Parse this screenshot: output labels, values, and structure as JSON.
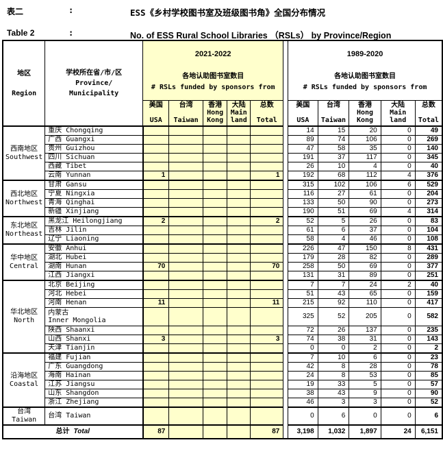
{
  "colors": {
    "highlight": "#FFFFCC",
    "border": "#000000",
    "background": "#FFFFFF"
  },
  "titles": {
    "label_cn": "表二",
    "colon1": ":",
    "title_cn": "ESS《乡村学校图书室及班级图书角》全国分布情况",
    "label_en": "Table 2",
    "colon2": ":",
    "title_en": "No. of ESS Rural School Libraries （RSLs） by Province/Region"
  },
  "header": {
    "region": {
      "cn": "地区",
      "en": "Region"
    },
    "province": {
      "cn": "学校所在省/市/区",
      "en1": "Province/",
      "en2": "Municipality"
    },
    "sections": [
      {
        "years": "2021-2022",
        "subtitle_cn": "各地认助图书室数目",
        "subtitle_en": "# RSLs funded by sponsors from"
      },
      {
        "years": "1989-2020",
        "subtitle_cn": "各地认助图书室数目",
        "subtitle_en": "# RSLs funded by sponsors from"
      }
    ],
    "columns": [
      {
        "cn": "美国",
        "en": "USA"
      },
      {
        "cn": "台湾",
        "en": "Taiwan"
      },
      {
        "cn": "香港",
        "en": "Hong Kong"
      },
      {
        "cn": "大陆",
        "en": "Main land"
      },
      {
        "cn": "总数",
        "en": "Total"
      }
    ]
  },
  "regions": [
    {
      "cn": "西南地区",
      "en": "Southwest",
      "rows": [
        {
          "cn": "重庆",
          "en": "Chongqing",
          "y2021": [
            "",
            "",
            "",
            "",
            ""
          ],
          "y1989": [
            "14",
            "15",
            "20",
            "0",
            "49"
          ]
        },
        {
          "cn": "广西",
          "en": "Guangxi",
          "y2021": [
            "",
            "",
            "",
            "",
            ""
          ],
          "y1989": [
            "89",
            "74",
            "106",
            "0",
            "269"
          ]
        },
        {
          "cn": "贵州",
          "en": "Guizhou",
          "y2021": [
            "",
            "",
            "",
            "",
            ""
          ],
          "y1989": [
            "47",
            "58",
            "35",
            "0",
            "140"
          ]
        },
        {
          "cn": "四川",
          "en": "Sichuan",
          "y2021": [
            "",
            "",
            "",
            "",
            ""
          ],
          "y1989": [
            "191",
            "37",
            "117",
            "0",
            "345"
          ]
        },
        {
          "cn": "西藏",
          "en": "Tibet",
          "y2021": [
            "",
            "",
            "",
            "",
            ""
          ],
          "y1989": [
            "26",
            "10",
            "4",
            "0",
            "40"
          ]
        },
        {
          "cn": "云南",
          "en": "Yunnan",
          "y2021": [
            "1",
            "",
            "",
            "",
            "1"
          ],
          "y1989": [
            "192",
            "68",
            "112",
            "4",
            "376"
          ]
        }
      ]
    },
    {
      "cn": "西北地区",
      "en": "Northwest",
      "rows": [
        {
          "cn": "甘肃",
          "en": "Gansu",
          "y2021": [
            "",
            "",
            "",
            "",
            ""
          ],
          "y1989": [
            "315",
            "102",
            "106",
            "6",
            "529"
          ]
        },
        {
          "cn": "宁夏",
          "en": "Ningxia",
          "y2021": [
            "",
            "",
            "",
            "",
            ""
          ],
          "y1989": [
            "116",
            "27",
            "61",
            "0",
            "204"
          ]
        },
        {
          "cn": "青海",
          "en": "Qinghai",
          "y2021": [
            "",
            "",
            "",
            "",
            ""
          ],
          "y1989": [
            "133",
            "50",
            "90",
            "0",
            "273"
          ]
        },
        {
          "cn": "新疆",
          "en": "Xinjiang",
          "y2021": [
            "",
            "",
            "",
            "",
            ""
          ],
          "y1989": [
            "190",
            "51",
            "69",
            "4",
            "314"
          ]
        }
      ]
    },
    {
      "cn": "东北地区",
      "en": "Northeast",
      "rows": [
        {
          "cn": "黑龙江",
          "en": "Heilongjiang",
          "y2021": [
            "2",
            "",
            "",
            "",
            "2"
          ],
          "y1989": [
            "52",
            "5",
            "26",
            "0",
            "83"
          ]
        },
        {
          "cn": "吉林",
          "en": "Jilin",
          "y2021": [
            "",
            "",
            "",
            "",
            ""
          ],
          "y1989": [
            "61",
            "6",
            "37",
            "0",
            "104"
          ]
        },
        {
          "cn": "辽宁",
          "en": "Liaoning",
          "y2021": [
            "",
            "",
            "",
            "",
            ""
          ],
          "y1989": [
            "58",
            "4",
            "46",
            "0",
            "108"
          ]
        }
      ]
    },
    {
      "cn": "华中地区",
      "en": "Central",
      "rows": [
        {
          "cn": "安徽",
          "en": "Anhui",
          "y2021": [
            "",
            "",
            "",
            "",
            ""
          ],
          "y1989": [
            "226",
            "47",
            "150",
            "8",
            "431"
          ]
        },
        {
          "cn": "湖北",
          "en": "Hubei",
          "y2021": [
            "",
            "",
            "",
            "",
            ""
          ],
          "y1989": [
            "179",
            "28",
            "82",
            "0",
            "289"
          ]
        },
        {
          "cn": "湖南",
          "en": "Hunan",
          "y2021": [
            "70",
            "",
            "",
            "",
            "70"
          ],
          "y1989": [
            "258",
            "50",
            "69",
            "0",
            "377"
          ]
        },
        {
          "cn": "江西",
          "en": "Jiangxi",
          "y2021": [
            "",
            "",
            "",
            "",
            ""
          ],
          "y1989": [
            "131",
            "31",
            "89",
            "0",
            "251"
          ]
        }
      ]
    },
    {
      "cn": "华北地区",
      "en": "North",
      "rows": [
        {
          "cn": "北京",
          "en": "Beijing",
          "y2021": [
            "",
            "",
            "",
            "",
            ""
          ],
          "y1989": [
            "7",
            "7",
            "24",
            "2",
            "40"
          ]
        },
        {
          "cn": "河北",
          "en": "Hebei",
          "y2021": [
            "",
            "",
            "",
            "",
            ""
          ],
          "y1989": [
            "51",
            "43",
            "65",
            "0",
            "159"
          ]
        },
        {
          "cn": "河南",
          "en": "Henan",
          "y2021": [
            "11",
            "",
            "",
            "",
            "11"
          ],
          "y1989": [
            "215",
            "92",
            "110",
            "0",
            "417"
          ]
        },
        {
          "cn": "内蒙古",
          "en": "Inner Mongolia",
          "two_line": true,
          "h": 26,
          "y2021": [
            "",
            "",
            "",
            "",
            ""
          ],
          "y1989": [
            "325",
            "52",
            "205",
            "0",
            "582"
          ]
        },
        {
          "cn": "陕西",
          "en": "Shaanxi",
          "y2021": [
            "",
            "",
            "",
            "",
            ""
          ],
          "y1989": [
            "72",
            "26",
            "137",
            "0",
            "235"
          ]
        },
        {
          "cn": "山西",
          "en": "Shanxi",
          "y2021": [
            "3",
            "",
            "",
            "",
            "3"
          ],
          "y1989": [
            "74",
            "38",
            "31",
            "0",
            "143"
          ]
        },
        {
          "cn": "天津",
          "en": "Tianjin",
          "y2021": [
            "",
            "",
            "",
            "",
            ""
          ],
          "y1989": [
            "0",
            "0",
            "2",
            "0",
            "2"
          ]
        }
      ]
    },
    {
      "cn": "沿海地区",
      "en": "Coastal",
      "rows": [
        {
          "cn": "福建",
          "en": "Fujian",
          "y2021": [
            "",
            "",
            "",
            "",
            ""
          ],
          "y1989": [
            "7",
            "10",
            "6",
            "0",
            "23"
          ]
        },
        {
          "cn": "广东",
          "en": "Guangdong",
          "y2021": [
            "",
            "",
            "",
            "",
            ""
          ],
          "y1989": [
            "42",
            "8",
            "28",
            "0",
            "78"
          ]
        },
        {
          "cn": "海南",
          "en": "Hainan",
          "y2021": [
            "",
            "",
            "",
            "",
            ""
          ],
          "y1989": [
            "24",
            "8",
            "53",
            "0",
            "85"
          ]
        },
        {
          "cn": "江苏",
          "en": "Jiangsu",
          "y2021": [
            "",
            "",
            "",
            "",
            ""
          ],
          "y1989": [
            "19",
            "33",
            "5",
            "0",
            "57"
          ]
        },
        {
          "cn": "山东",
          "en": "Shangdon",
          "y2021": [
            "",
            "",
            "",
            "",
            ""
          ],
          "y1989": [
            "38",
            "43",
            "9",
            "0",
            "90"
          ]
        },
        {
          "cn": "浙江",
          "en": "Zhejiang",
          "y2021": [
            "",
            "",
            "",
            "",
            ""
          ],
          "y1989": [
            "46",
            "3",
            "3",
            "0",
            "52"
          ]
        }
      ]
    },
    {
      "cn": "台湾",
      "en": "Taiwan",
      "rows": [
        {
          "cn": "台湾",
          "en": "Taiwan",
          "h": 19,
          "y2021": [
            "",
            "",
            "",
            "",
            ""
          ],
          "y1989": [
            "0",
            "6",
            "0",
            "0",
            "6"
          ]
        }
      ]
    }
  ],
  "total_row": {
    "label_cn": "总计",
    "label_en": "Total",
    "y2021": [
      "87",
      "",
      "",
      "",
      "87"
    ],
    "y1989": [
      "3,198",
      "1,032",
      "1,897",
      "24",
      "6,151"
    ]
  }
}
